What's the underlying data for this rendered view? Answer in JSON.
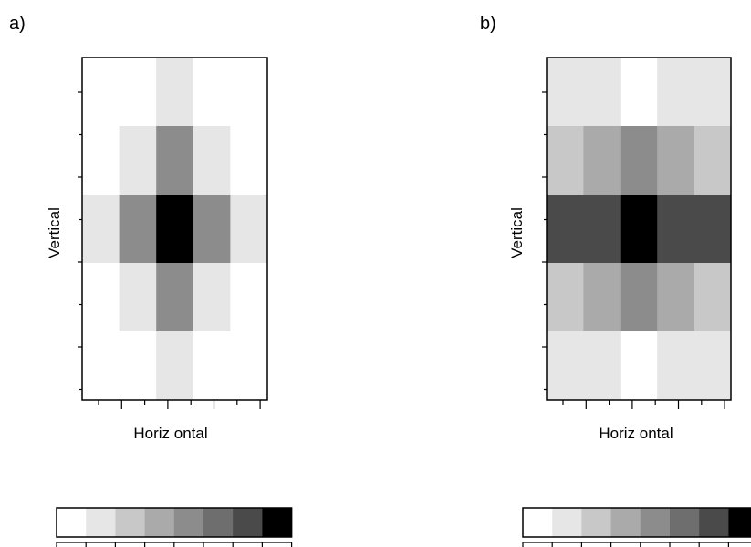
{
  "panels": [
    {
      "label": "a)",
      "chart_data": {
        "type": "heatmap",
        "title": "",
        "xlabel": "Horiz ontal",
        "ylabel": "Vertical",
        "columns": 5,
        "rows": 5,
        "scale": "levels 0-7 (0 = white, 7 = black)",
        "values": [
          [
            0,
            0,
            1,
            0,
            0
          ],
          [
            0,
            1,
            4,
            1,
            0
          ],
          [
            1,
            4,
            7,
            4,
            1
          ],
          [
            0,
            1,
            4,
            1,
            0
          ],
          [
            0,
            0,
            1,
            0,
            0
          ]
        ]
      }
    },
    {
      "label": "b)",
      "chart_data": {
        "type": "heatmap",
        "title": "",
        "xlabel": "Horiz ontal",
        "ylabel": "Vertical",
        "columns": 5,
        "rows": 5,
        "scale": "levels 0-7 (0 = white, 7 = black)",
        "values": [
          [
            1,
            1,
            0,
            1,
            1
          ],
          [
            2,
            3,
            4,
            3,
            2
          ],
          [
            6,
            6,
            7,
            6,
            6
          ],
          [
            2,
            3,
            4,
            3,
            2
          ],
          [
            1,
            1,
            0,
            1,
            1
          ]
        ]
      }
    }
  ],
  "colorbar": {
    "levels": 8,
    "colors": [
      "#ffffff",
      "#e6e6e6",
      "#c8c8c8",
      "#aaaaaa",
      "#8c8c8c",
      "#6e6e6e",
      "#4a4a4a",
      "#000000"
    ]
  }
}
